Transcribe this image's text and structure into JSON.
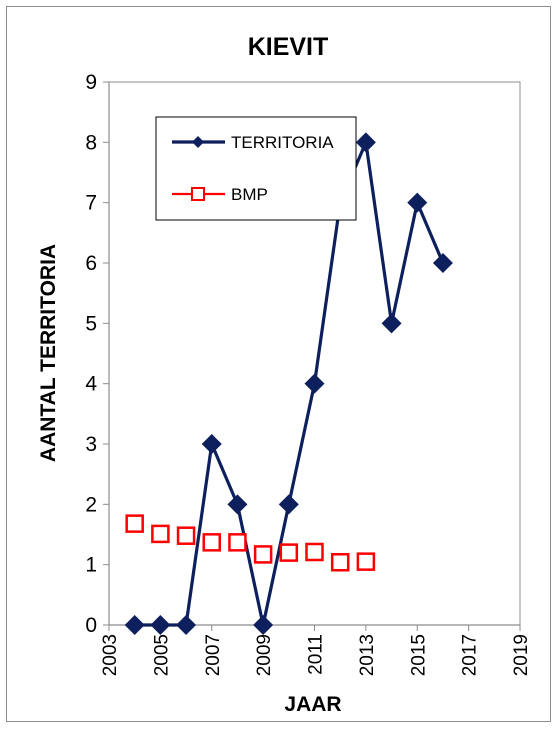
{
  "chart_data": {
    "type": "line",
    "title": "KIEVIT",
    "xlabel": "JAAR",
    "ylabel": "AANTAL TERRITORIA",
    "xlim": [
      2003,
      2019
    ],
    "ylim": [
      0,
      9
    ],
    "xticks": [
      "2003",
      "2005",
      "2007",
      "2009",
      "2011",
      "2013",
      "2015",
      "2017",
      "2019"
    ],
    "yticks": [
      "0",
      "1",
      "2",
      "3",
      "4",
      "5",
      "6",
      "7",
      "8",
      "9"
    ],
    "grid": false,
    "legend_position": "top-left",
    "series": [
      {
        "name": "TERRITORIA",
        "color": "#0d1f5c",
        "marker": "diamond",
        "x": [
          2004,
          2005,
          2006,
          2007,
          2008,
          2009,
          2010,
          2011,
          2012,
          2013,
          2014,
          2015,
          2016
        ],
        "y": [
          0,
          0,
          0,
          3,
          2,
          0,
          2,
          4,
          7,
          8,
          5,
          7,
          6
        ]
      },
      {
        "name": "BMP",
        "color": "#ff0000",
        "marker": "square-open",
        "x": [
          2004,
          2005,
          2006,
          2007,
          2008,
          2009,
          2010,
          2011,
          2012,
          2013
        ],
        "y": [
          1.68,
          1.51,
          1.48,
          1.37,
          1.37,
          1.17,
          1.2,
          1.21,
          1.04,
          1.05
        ]
      }
    ]
  }
}
